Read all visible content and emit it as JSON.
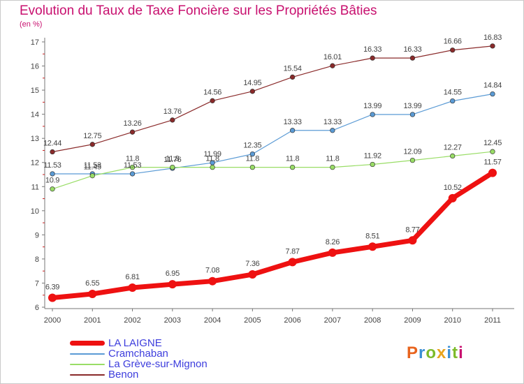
{
  "title": "Evolution du Taux de Taxe Foncière sur les Propriétés Bâties",
  "unit_label": "(en %)",
  "logo": {
    "letters": [
      {
        "ch": "P",
        "color": "#e8641e"
      },
      {
        "ch": "r",
        "color": "#3a8fd4"
      },
      {
        "ch": "o",
        "color": "#7dbb2a"
      },
      {
        "ch": "x",
        "color": "#e8a41e"
      },
      {
        "ch": "i",
        "color": "#3a8fd4"
      },
      {
        "ch": "t",
        "color": "#7dbb2a"
      },
      {
        "ch": "i",
        "color": "#c8106f"
      }
    ]
  },
  "chart_data": {
    "type": "line",
    "x": [
      "2000",
      "2001",
      "2002",
      "2003",
      "2004",
      "2005",
      "2006",
      "2007",
      "2008",
      "2009",
      "2010",
      "2011"
    ],
    "ylim": [
      6,
      17
    ],
    "yticks": [
      "6",
      "7",
      "8",
      "9",
      "10",
      "11",
      "12",
      "13",
      "14",
      "15",
      "16",
      "17"
    ],
    "grid": false,
    "legend_position": "bottom-left",
    "series": [
      {
        "name": "LA LAIGNE",
        "color": "#ee1111",
        "width": 7,
        "values": [
          6.39,
          6.55,
          6.81,
          6.95,
          7.08,
          7.36,
          7.87,
          8.26,
          8.51,
          8.77,
          10.52,
          11.57
        ],
        "labels": [
          "6.39",
          "6.55",
          "6.81",
          "6.95",
          "7.08",
          "7.36",
          "7.87",
          "8.26",
          "8.51",
          "8.77",
          "10.52",
          "11.57"
        ]
      },
      {
        "name": "Cramchaban",
        "color": "#5b9bd5",
        "width": 1.2,
        "values": [
          11.53,
          11.53,
          11.53,
          11.76,
          11.99,
          12.35,
          13.33,
          13.33,
          13.99,
          13.99,
          14.55,
          14.84
        ],
        "labels": [
          "11.53",
          "11.53",
          "11.53",
          "11.76",
          "11.99",
          "12.35",
          "13.33",
          "13.33",
          "13.99",
          "13.99",
          "14.55",
          "14.84"
        ]
      },
      {
        "name": "La Grève-sur-Mignon",
        "color": "#99dd66",
        "width": 1.2,
        "values": [
          10.9,
          11.45,
          11.8,
          11.8,
          11.8,
          11.8,
          11.8,
          11.8,
          11.92,
          12.09,
          12.27,
          12.45
        ],
        "labels": [
          "10.9",
          "11.45",
          "11.8",
          "11.8",
          "11.8",
          "11.8",
          "11.8",
          "11.8",
          "11.92",
          "12.09",
          "12.27",
          "12.45"
        ]
      },
      {
        "name": "Benon",
        "color": "#8a2a2a",
        "width": 1.2,
        "values": [
          12.44,
          12.75,
          13.26,
          13.76,
          14.56,
          14.95,
          15.54,
          16.01,
          16.33,
          16.33,
          16.66,
          16.83
        ],
        "labels": [
          "12.44",
          "12.75",
          "13.26",
          "13.76",
          "14.56",
          "14.95",
          "15.54",
          "16.01",
          "16.33",
          "16.33",
          "16.66",
          "16.83"
        ]
      }
    ]
  }
}
